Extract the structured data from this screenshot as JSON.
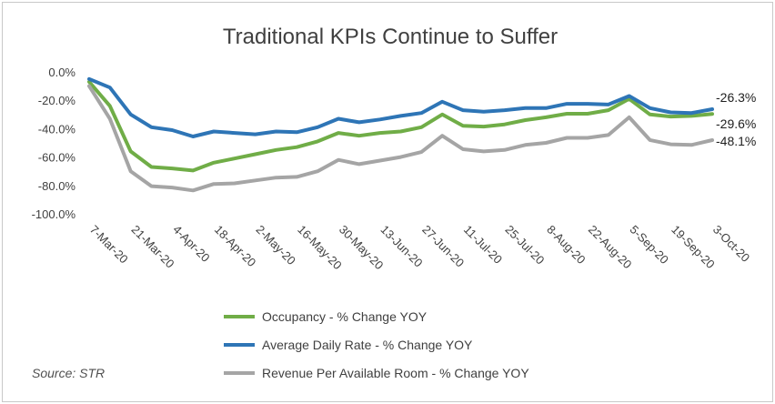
{
  "chart_data": {
    "type": "line",
    "title": "Traditional KPIs Continue to Suffer",
    "source": "Source: STR",
    "y_ticks": [
      "0.0%",
      "-20.0%",
      "-40.0%",
      "-60.0%",
      "-80.0%",
      "-100.0%"
    ],
    "ylim": [
      -100,
      0
    ],
    "x_tick_labels": [
      "7-Mar-20",
      "21-Mar-20",
      "4-Apr-20",
      "18-Apr-20",
      "2-May-20",
      "16-May-20",
      "30-May-20",
      "13-Jun-20",
      "27-Jun-20",
      "11-Jul-20",
      "25-Jul-20",
      "8-Aug-20",
      "22-Aug-20",
      "5-Sep-20",
      "19-Sep-20",
      "3-Oct-20"
    ],
    "x": [
      "7-Mar-20",
      "14-Mar-20",
      "21-Mar-20",
      "28-Mar-20",
      "4-Apr-20",
      "11-Apr-20",
      "18-Apr-20",
      "25-Apr-20",
      "2-May-20",
      "9-May-20",
      "16-May-20",
      "23-May-20",
      "30-May-20",
      "6-Jun-20",
      "13-Jun-20",
      "20-Jun-20",
      "27-Jun-20",
      "4-Jul-20",
      "11-Jul-20",
      "18-Jul-20",
      "25-Jul-20",
      "1-Aug-20",
      "8-Aug-20",
      "15-Aug-20",
      "22-Aug-20",
      "29-Aug-20",
      "5-Sep-20",
      "12-Sep-20",
      "19-Sep-20",
      "26-Sep-20",
      "3-Oct-20"
    ],
    "series": [
      {
        "name": "Occupancy - % Change YOY",
        "color": "#70ad47",
        "values": [
          -7,
          -24,
          -56,
          -67,
          -68,
          -69.5,
          -64,
          -61,
          -58,
          -55,
          -53,
          -49,
          -43,
          -45,
          -43,
          -42,
          -39,
          -30,
          -38,
          -38.5,
          -37,
          -34,
          -32,
          -29.5,
          -29.5,
          -27,
          -19,
          -30,
          -31.5,
          -31,
          -29.6
        ]
      },
      {
        "name": "Average Daily Rate - % Change YOY",
        "color": "#2e75b6",
        "values": [
          -5,
          -11,
          -30,
          -39,
          -41,
          -45.5,
          -42,
          -43,
          -44,
          -42,
          -42.5,
          -39,
          -33,
          -35.5,
          -33.5,
          -31,
          -29,
          -21,
          -27,
          -28,
          -27,
          -25.5,
          -25.5,
          -22.5,
          -22.5,
          -23,
          -17,
          -25.5,
          -28.5,
          -29,
          -26.3
        ]
      },
      {
        "name": "Revenue Per Available Room - % Change YOY",
        "color": "#a5a5a5",
        "values": [
          -10,
          -33,
          -70,
          -80.5,
          -81.5,
          -83.5,
          -79,
          -78.5,
          -76.5,
          -74.5,
          -74,
          -70,
          -62,
          -65,
          -62.5,
          -60,
          -56.5,
          -45,
          -54.5,
          -56,
          -55,
          -51.5,
          -50,
          -46.5,
          -46.5,
          -44.5,
          -32,
          -48,
          -51,
          -51.5,
          -48.1
        ]
      }
    ],
    "end_labels": [
      "-26.3%",
      "-29.6%",
      "-48.1%"
    ],
    "legend_position": "bottom",
    "grid": false
  }
}
